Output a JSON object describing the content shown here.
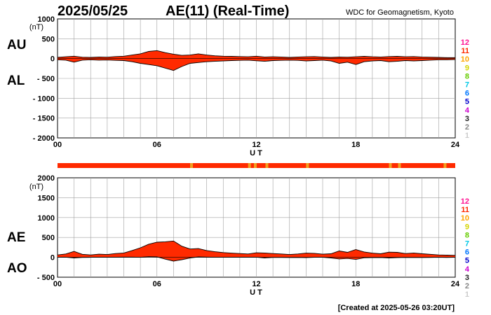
{
  "header": {
    "date": "2025/05/25",
    "title": "AE(11) (Real-Time)",
    "source": "WDC for Geomagnetism, Kyoto",
    "footer": "[Created at 2025-05-26 03:20UT]"
  },
  "colors": {
    "fill": "#ff2a00",
    "bar_dominant": "#ff2a00",
    "bar_minor": "#f0a020",
    "grid": "#a0a0a0",
    "trace": "#000000"
  },
  "station_count_legend": [
    {
      "label": "12",
      "color": "#ff1493"
    },
    {
      "label": "11",
      "color": "#ff2a00"
    },
    {
      "label": "10",
      "color": "#ffa500"
    },
    {
      "label": "9",
      "color": "#d4d400"
    },
    {
      "label": "8",
      "color": "#66cc00"
    },
    {
      "label": "7",
      "color": "#00c8e6"
    },
    {
      "label": "6",
      "color": "#0077ff"
    },
    {
      "label": "5",
      "color": "#0000cc"
    },
    {
      "label": "4",
      "color": "#cc00cc"
    },
    {
      "label": "3",
      "color": "#222222"
    },
    {
      "label": "2",
      "color": "#888888"
    },
    {
      "label": "1",
      "color": "#cccccc"
    }
  ],
  "station_bar": {
    "default_count": "11",
    "segments_count10_ut": [
      8.0,
      11.5,
      11.85,
      12.55,
      15.0,
      20.0,
      20.55,
      23.3
    ]
  },
  "chart_data": [
    {
      "type": "area",
      "panel": "AU/AL",
      "series_labels": [
        "AU",
        "AL"
      ],
      "unit_label": "(nT)",
      "xlabel": "U T",
      "xlim": [
        0,
        24
      ],
      "xticks": [
        "00",
        "06",
        "12",
        "18",
        "24"
      ],
      "ylim": [
        -2000,
        1000
      ],
      "yticks": [
        "1000",
        "500",
        "0",
        "- 500",
        "- 1000",
        "- 1500",
        "- 2000"
      ],
      "x": [
        0,
        0.5,
        1,
        1.5,
        2,
        2.5,
        3,
        3.5,
        4,
        4.5,
        5,
        5.5,
        6,
        6.5,
        7,
        7.5,
        8,
        8.5,
        9,
        9.5,
        10,
        10.5,
        11,
        11.5,
        12,
        12.5,
        13,
        13.5,
        14,
        14.5,
        15,
        15.5,
        16,
        16.5,
        17,
        17.5,
        18,
        18.5,
        19,
        19.5,
        20,
        20.5,
        21,
        21.5,
        22,
        22.5,
        23,
        23.5,
        24
      ],
      "series": [
        {
          "name": "AU",
          "values": [
            30,
            45,
            60,
            35,
            30,
            40,
            35,
            50,
            60,
            90,
            120,
            180,
            200,
            150,
            110,
            80,
            90,
            120,
            90,
            70,
            60,
            55,
            50,
            45,
            60,
            40,
            45,
            40,
            30,
            40,
            45,
            50,
            40,
            30,
            40,
            35,
            45,
            55,
            45,
            40,
            50,
            55,
            45,
            50,
            40,
            35,
            30,
            25,
            25
          ]
        },
        {
          "name": "AL",
          "values": [
            -30,
            -40,
            -90,
            -40,
            -30,
            -40,
            -35,
            -45,
            -50,
            -80,
            -120,
            -150,
            -180,
            -240,
            -300,
            -200,
            -120,
            -100,
            -80,
            -70,
            -60,
            -50,
            -45,
            -40,
            -55,
            -70,
            -50,
            -45,
            -40,
            -45,
            -60,
            -50,
            -40,
            -60,
            -120,
            -90,
            -150,
            -80,
            -60,
            -50,
            -80,
            -70,
            -50,
            -60,
            -50,
            -40,
            -30,
            -30,
            -25
          ]
        }
      ]
    },
    {
      "type": "area",
      "panel": "AE/AO",
      "series_labels": [
        "AE",
        "AO"
      ],
      "unit_label": "(nT)",
      "xlabel": "U T",
      "xlim": [
        0,
        24
      ],
      "xticks": [
        "00",
        "06",
        "12",
        "18",
        "24"
      ],
      "ylim": [
        -500,
        2000
      ],
      "yticks": [
        "2000",
        "1500",
        "1000",
        "500",
        "0",
        "- 500"
      ],
      "x": [
        0,
        0.5,
        1,
        1.5,
        2,
        2.5,
        3,
        3.5,
        4,
        4.5,
        5,
        5.5,
        6,
        6.5,
        7,
        7.5,
        8,
        8.5,
        9,
        9.5,
        10,
        10.5,
        11,
        11.5,
        12,
        12.5,
        13,
        13.5,
        14,
        14.5,
        15,
        15.5,
        16,
        16.5,
        17,
        17.5,
        18,
        18.5,
        19,
        19.5,
        20,
        20.5,
        21,
        21.5,
        22,
        22.5,
        23,
        23.5,
        24
      ],
      "series": [
        {
          "name": "AE",
          "values": [
            60,
            85,
            150,
            75,
            60,
            80,
            70,
            95,
            110,
            170,
            240,
            330,
            380,
            390,
            410,
            280,
            210,
            220,
            170,
            140,
            120,
            105,
            95,
            85,
            115,
            110,
            95,
            85,
            70,
            85,
            105,
            100,
            80,
            90,
            160,
            125,
            195,
            135,
            105,
            90,
            130,
            125,
            95,
            110,
            90,
            75,
            60,
            55,
            50
          ]
        },
        {
          "name": "AO",
          "values": [
            0,
            3,
            -15,
            -3,
            0,
            0,
            0,
            3,
            5,
            5,
            0,
            15,
            10,
            -45,
            -95,
            -60,
            -15,
            10,
            5,
            0,
            0,
            3,
            3,
            3,
            3,
            -15,
            -3,
            -3,
            -5,
            -3,
            -8,
            0,
            0,
            -15,
            -40,
            -28,
            -52,
            -12,
            -8,
            -5,
            -15,
            -8,
            -3,
            -5,
            -5,
            -3,
            0,
            -3,
            0
          ]
        }
      ]
    }
  ]
}
